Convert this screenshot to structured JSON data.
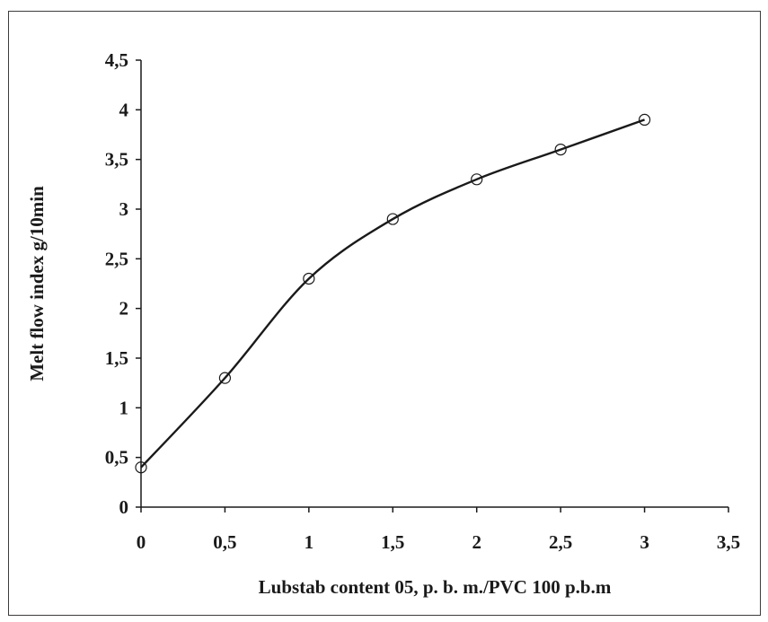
{
  "chart_data": {
    "type": "line",
    "title": "",
    "xlabel": "Lubstab content 05, p. b. m./PVC 100 p.b.m",
    "ylabel": "Melt flow index g/10min",
    "xlim": [
      0,
      3.5
    ],
    "ylim": [
      0,
      4.5
    ],
    "x_ticks": [
      0,
      0.5,
      1,
      1.5,
      2,
      2.5,
      3,
      3.5
    ],
    "x_tick_labels": [
      "0",
      "0,5",
      "1",
      "1,5",
      "2",
      "2,5",
      "3",
      "3,5"
    ],
    "y_ticks": [
      0,
      0.5,
      1,
      1.5,
      2,
      2.5,
      3,
      3.5,
      4,
      4.5
    ],
    "y_tick_labels": [
      "0",
      "0,5",
      "1",
      "1,5",
      "2",
      "2,5",
      "3",
      "3,5",
      "4",
      "4,5"
    ],
    "grid": false,
    "legend": "none",
    "marker": "open-circle",
    "smooth": true,
    "line_color": "#1a1a1a",
    "series": [
      {
        "x": [
          0,
          0.5,
          1,
          1.5,
          2,
          2.5,
          3
        ],
        "y": [
          0.4,
          1.3,
          2.3,
          2.9,
          3.3,
          3.6,
          3.9
        ]
      }
    ]
  }
}
